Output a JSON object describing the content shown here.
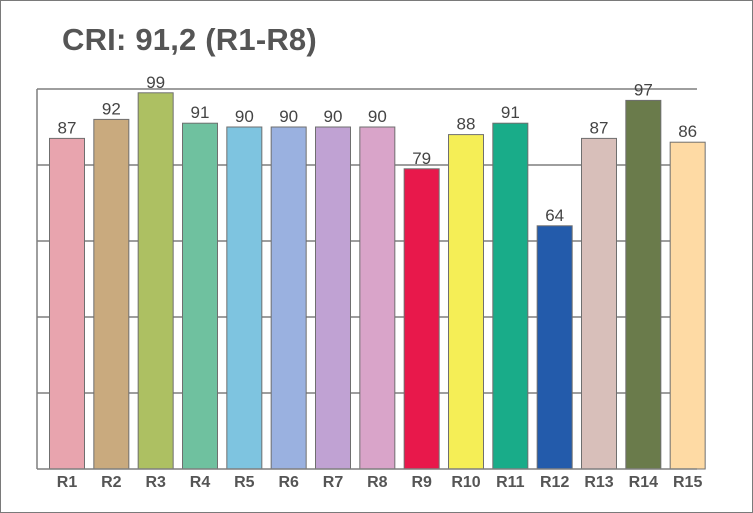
{
  "chart_data": {
    "type": "bar",
    "title": "CRI: 91,2 (R1-R8)",
    "categories": [
      "R1",
      "R2",
      "R3",
      "R4",
      "R5",
      "R6",
      "R7",
      "R8",
      "R9",
      "R10",
      "R11",
      "R12",
      "R13",
      "R14",
      "R15"
    ],
    "values": [
      87,
      92,
      99,
      91,
      90,
      90,
      90,
      90,
      79,
      88,
      91,
      64,
      87,
      97,
      86
    ],
    "colors": [
      "#e8a4ae",
      "#c9aa7e",
      "#adc062",
      "#6fc19f",
      "#7ec4e0",
      "#9ab1e0",
      "#c0a2d3",
      "#d9a4c9",
      "#e8184b",
      "#f5ee56",
      "#19ac89",
      "#235bab",
      "#d8bfba",
      "#6a7b4b",
      "#fedaa4"
    ],
    "ylim": [
      0,
      100
    ],
    "grid": true,
    "xlabel": "",
    "ylabel": ""
  }
}
